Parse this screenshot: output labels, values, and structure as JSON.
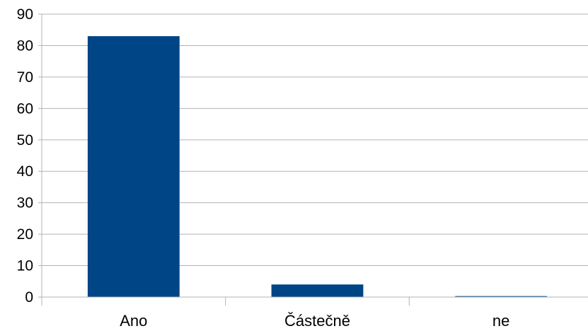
{
  "chart_data": {
    "type": "bar",
    "categories": [
      "Ano",
      "Částečně",
      "ne"
    ],
    "values": [
      83,
      4,
      0.3
    ],
    "ylim": [
      0,
      90
    ],
    "yticks": [
      0,
      10,
      20,
      30,
      40,
      50,
      60,
      70,
      80,
      90
    ],
    "ytick_labels": [
      "0",
      "10",
      "20",
      "30",
      "40",
      "50",
      "60",
      "70",
      "80",
      "90"
    ],
    "grid": true,
    "legend": "none",
    "bar_color": "#004586"
  }
}
